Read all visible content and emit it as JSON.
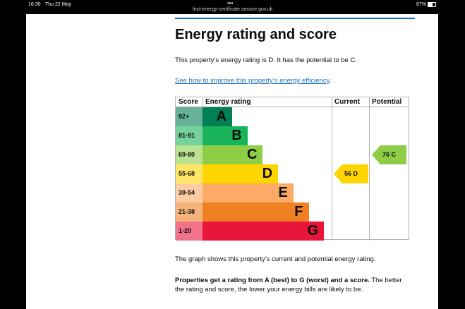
{
  "status_bar": {
    "time": "16:30",
    "date": "Thu 22 May",
    "url": "find-energy-certificate.service.gov.uk",
    "battery": "67%"
  },
  "header": {
    "title": "Energy rating and score"
  },
  "intro": "This property’s energy rating is D. It has the potential to be C.",
  "link": "See how to improve this property’s energy efficiency",
  "table": {
    "headers": [
      "Score",
      "Energy rating",
      "Current",
      "Potential"
    ],
    "bands": [
      {
        "range": "92+",
        "letter": "A",
        "color": "#008054",
        "light": "#66b398"
      },
      {
        "range": "81-91",
        "letter": "B",
        "color": "#19b459",
        "light": "#75d29b"
      },
      {
        "range": "69-80",
        "letter": "C",
        "color": "#8dce46",
        "light": "#bbe290"
      },
      {
        "range": "55-68",
        "letter": "D",
        "color": "#ffd500",
        "light": "#ffe666"
      },
      {
        "range": "39-54",
        "letter": "E",
        "color": "#fcaa65",
        "light": "#fdcca3"
      },
      {
        "range": "21-38",
        "letter": "F",
        "color": "#ef8023",
        "light": "#f5b37b"
      },
      {
        "range": "1-20",
        "letter": "G",
        "color": "#e9153b",
        "light": "#f27389"
      }
    ],
    "current": {
      "score": 56,
      "band": "D"
    },
    "potential": {
      "score": 76,
      "band": "C"
    }
  },
  "paragraphs": [
    {
      "text": "The graph shows this property’s current and potential energy rating."
    },
    {
      "bold": "Properties get a rating from A (best) to G (worst) and a score.",
      "text": " The better the rating and score, the lower your energy bills are likely to be."
    }
  ]
}
